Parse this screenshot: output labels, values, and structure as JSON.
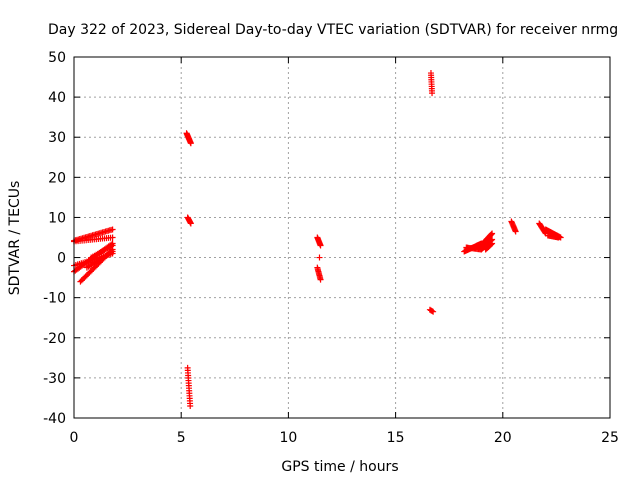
{
  "chart_data": {
    "type": "scatter",
    "title": "Day 322 of 2023, Sidereal Day-to-day VTEC variation (SDTVAR) for receiver nrmg",
    "xlabel": "GPS time / hours",
    "ylabel": "SDTVAR / TECUs",
    "xlim": [
      0,
      25
    ],
    "ylim": [
      -40,
      50
    ],
    "xticks": [
      "0",
      "5",
      "10",
      "15",
      "20",
      "25"
    ],
    "yticks": [
      "-40",
      "-30",
      "-20",
      "-10",
      "0",
      "10",
      "20",
      "30",
      "40",
      "50"
    ],
    "grid": true,
    "marker": "plus",
    "color": "#ff0000",
    "segments": [
      {
        "x0": 0.0,
        "x1": 1.8,
        "y0": 4.2,
        "y1": 7.0,
        "n": 28
      },
      {
        "x0": 0.0,
        "x1": 1.8,
        "y0": 4.0,
        "y1": 5.0,
        "n": 20
      },
      {
        "x0": 0.0,
        "x1": 1.8,
        "y0": -3.5,
        "y1": 3.5,
        "n": 30
      },
      {
        "x0": 0.0,
        "x1": 1.8,
        "y0": -2.0,
        "y1": 1.0,
        "n": 22
      },
      {
        "x0": 0.3,
        "x1": 1.8,
        "y0": -6.0,
        "y1": 2.0,
        "n": 26
      },
      {
        "x0": 0.6,
        "x1": 1.8,
        "y0": -2.5,
        "y1": 1.5,
        "n": 18
      },
      {
        "x0": 0.8,
        "x1": 1.8,
        "y0": 0.0,
        "y1": 3.0,
        "n": 14
      },
      {
        "x0": 5.25,
        "x1": 5.45,
        "y0": 31.0,
        "y1": 28.5,
        "n": 14
      },
      {
        "x0": 5.3,
        "x1": 5.45,
        "y0": 10.0,
        "y1": 8.5,
        "n": 8
      },
      {
        "x0": 5.3,
        "x1": 5.42,
        "y0": -27.5,
        "y1": -37.0,
        "n": 16
      },
      {
        "x0": 11.35,
        "x1": 11.5,
        "y0": 5.0,
        "y1": 3.0,
        "n": 10
      },
      {
        "x0": 11.35,
        "x1": 11.5,
        "y0": -2.5,
        "y1": -5.5,
        "n": 10
      },
      {
        "x0": 11.45,
        "x1": 11.45,
        "y0": 0.0,
        "y1": 0.0,
        "n": 1
      },
      {
        "x0": 16.65,
        "x1": 16.7,
        "y0": 46.0,
        "y1": 41.0,
        "n": 10
      },
      {
        "x0": 16.6,
        "x1": 16.75,
        "y0": -13.0,
        "y1": -13.5,
        "n": 4
      },
      {
        "x0": 18.2,
        "x1": 19.0,
        "y0": 1.5,
        "y1": 3.5,
        "n": 22
      },
      {
        "x0": 18.3,
        "x1": 19.0,
        "y0": 2.5,
        "y1": 2.0,
        "n": 14
      },
      {
        "x0": 18.9,
        "x1": 19.5,
        "y0": 2.5,
        "y1": 6.0,
        "n": 20
      },
      {
        "x0": 19.0,
        "x1": 19.5,
        "y0": 2.0,
        "y1": 4.5,
        "n": 14
      },
      {
        "x0": 19.2,
        "x1": 19.5,
        "y0": 2.0,
        "y1": 3.5,
        "n": 8
      },
      {
        "x0": 20.4,
        "x1": 20.6,
        "y0": 9.0,
        "y1": 6.5,
        "n": 10
      },
      {
        "x0": 21.7,
        "x1": 22.0,
        "y0": 8.5,
        "y1": 6.0,
        "n": 12
      },
      {
        "x0": 22.0,
        "x1": 22.7,
        "y0": 7.0,
        "y1": 5.0,
        "n": 20
      },
      {
        "x0": 22.1,
        "x1": 22.6,
        "y0": 5.5,
        "y1": 5.0,
        "n": 12
      }
    ]
  }
}
